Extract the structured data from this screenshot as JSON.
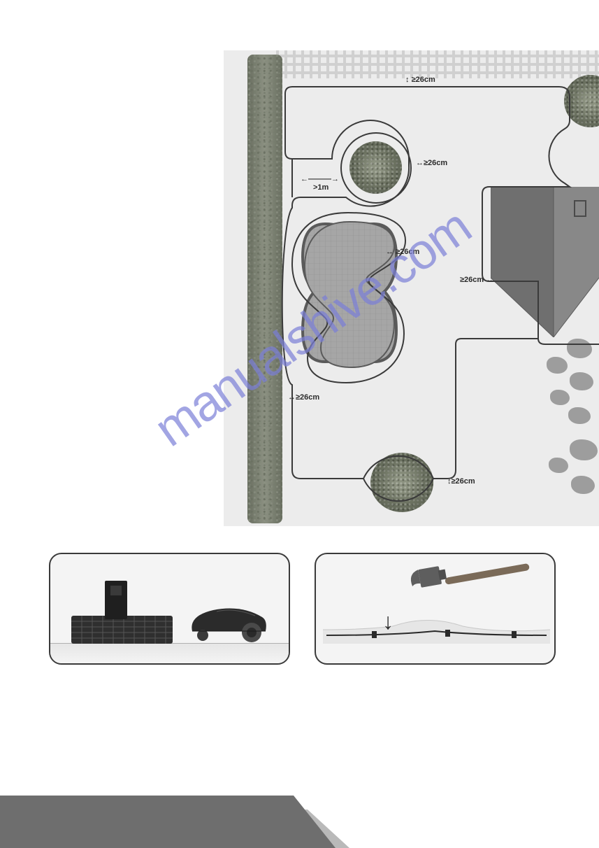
{
  "diagram": {
    "background_color": "#ececec",
    "wire_color": "#3a3a3a",
    "labels": {
      "top_fence": "≥26cm",
      "bush_right": "≥26cm",
      "corridor": ">1m",
      "pool_right": "≥26cm",
      "house_left": "≥26cm",
      "hedge_left": "≥26cm",
      "bottom": "≥26cm"
    },
    "label_fontsize": 11,
    "label_color": "#2a2a2a",
    "bush_color": "#6f7466",
    "pool_border": "#5a5a5a",
    "pool_fill": "#9e9e9e",
    "house_roof_dark": "#6f6f6f",
    "house_roof_light": "#888888",
    "rock_color": "#9d9d9d",
    "pergola_color": "#d0d0d0",
    "hedge_color": "#787d70"
  },
  "photos": {
    "border_color": "#3a3a3a",
    "border_radius": 18,
    "background": "#f4f4f4",
    "left": {
      "description": "charging-station-and-mower"
    },
    "right": {
      "description": "hammer-pegging-wire",
      "arrow": "↓",
      "hammer_color": "#5e5e5e",
      "peg_color": "#2a2a2a",
      "ground_color": "#e8e8e8"
    }
  },
  "watermark": {
    "text": "manualshive.com",
    "color": "#7b7fd8",
    "fontsize": 72,
    "rotation_deg": -35
  },
  "footer": {
    "dark_color": "#6e6e6e",
    "light_color": "#b9b9b9"
  }
}
